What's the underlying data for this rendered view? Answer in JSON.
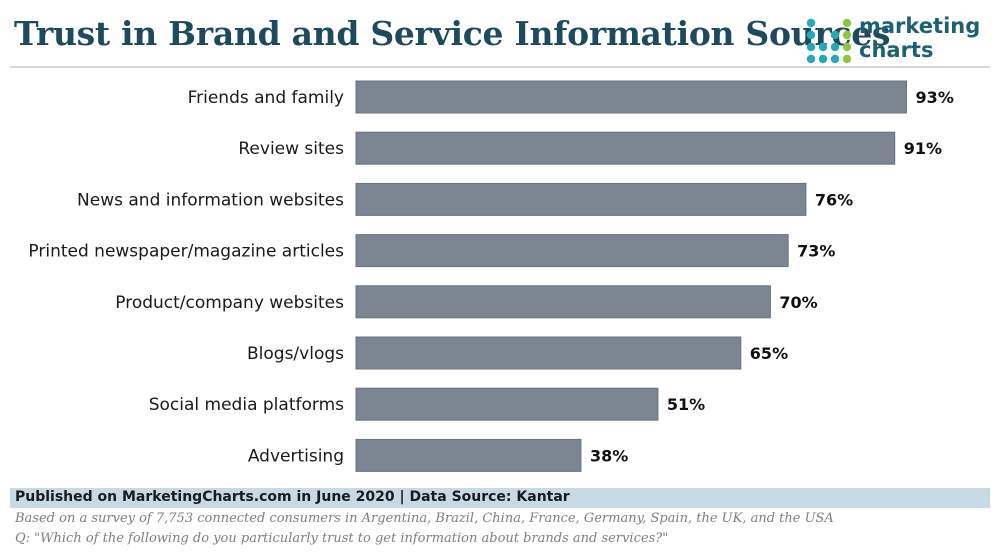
{
  "header": {
    "title": "Trust in Brand and Service Information Sources",
    "logo_line1": "marketing",
    "logo_line2": "charts"
  },
  "colors": {
    "title": "#1f4a5c",
    "bar": "#7b8692",
    "bar_edge": "#6a747f",
    "footer_bar": "#c7d9e4",
    "logo_teal": "#27a9b5",
    "logo_green": "#8dc63f",
    "logo_text": "#1f5f72"
  },
  "chart_data": {
    "type": "bar",
    "orientation": "horizontal",
    "title": "Trust in Brand and Service Information Sources",
    "categories": [
      "Friends and family",
      "Review sites",
      "News and information websites",
      "Printed newspaper/magazine articles",
      "Product/company websites",
      "Blogs/vlogs",
      "Social media platforms",
      "Advertising"
    ],
    "values": [
      93,
      91,
      76,
      73,
      70,
      65,
      51,
      38
    ],
    "value_labels": [
      "93%",
      "91%",
      "76%",
      "73%",
      "70%",
      "65%",
      "51%",
      "38%"
    ],
    "unit": "%",
    "xlim": [
      0,
      100
    ],
    "grid": false,
    "legend": "none"
  },
  "footer": {
    "published": "Published on MarketingCharts.com in June 2020 | Data Source: Kantar",
    "note": "Based on a survey of 7,753 connected consumers in Argentina, Brazil, China, France, Germany, Spain, the UK, and the USA",
    "question": "Q: \"Which of the following do you particularly trust to get information about brands and services?\""
  }
}
